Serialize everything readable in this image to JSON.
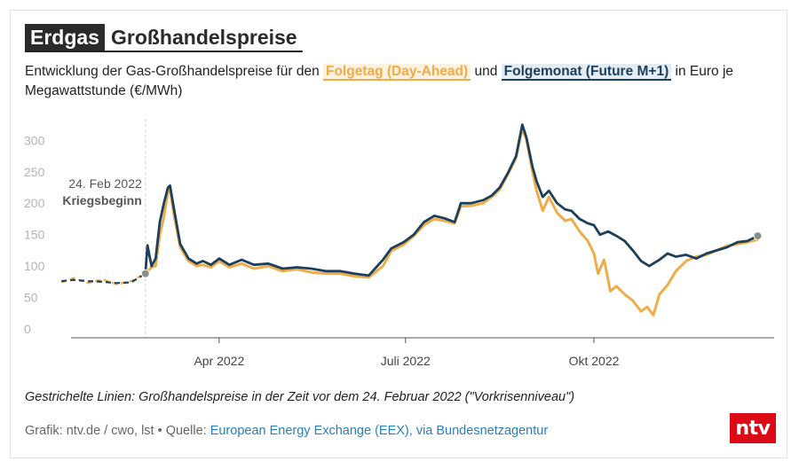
{
  "header": {
    "title_main": "Erdgas",
    "title_sub": "Großhandelspreise"
  },
  "subtitle": {
    "part1": "Entwicklung der Gas-Großhandelspreise für den ",
    "series1_label": "Folgetag (Day-Ahead)",
    "part2": " und ",
    "series2_label": "Folgemonat (Future M+1)",
    "part3": " in Euro je Megawattstunde (€/MWh)"
  },
  "annotation": {
    "date": "24. Feb 2022",
    "label": "Kriegsbeginn"
  },
  "footer": {
    "note": "Gestrichelte Linien: Großhandelspreise in der Zeit vor dem 24. Februar 2022 (\"Vorkrisenniveau\")",
    "source_prefix": "Grafik: ntv.de / cwo, lst • Quelle: ",
    "source_link": "European Energy Exchange (EEX), via Bundesnetzagentur",
    "logo_text": "ntv"
  },
  "colors": {
    "day_ahead": "#efad4a",
    "future": "#1c3f5c",
    "axis": "#555555",
    "tick_label": "#b3b3b3",
    "logo": "#dc0a17"
  },
  "chart_data": {
    "type": "line",
    "title": "Großhandelspreise",
    "xlabel": "",
    "ylabel": "",
    "ylim": [
      0,
      340
    ],
    "x_start": "2022-01-10",
    "x_end": "2022-12-28",
    "xticks": [
      {
        "label": "Apr 2022",
        "date": "2022-04-01"
      },
      {
        "label": "Juli 2022",
        "date": "2022-07-01"
      },
      {
        "label": "Okt 2022",
        "date": "2022-10-01"
      }
    ],
    "yticks": [
      0,
      50,
      100,
      150,
      200,
      250,
      300
    ],
    "event": {
      "date": "2022-02-24",
      "value": 88
    },
    "end_point": {
      "date": "2022-12-20",
      "value": 148
    },
    "series": [
      {
        "name": "Folgetag (Day-Ahead)",
        "color": "#efad4a",
        "pre_crisis": [
          [
            "2022-01-14",
            74
          ],
          [
            "2022-01-20",
            81
          ],
          [
            "2022-01-27",
            73
          ],
          [
            "2022-02-03",
            79
          ],
          [
            "2022-02-10",
            71
          ],
          [
            "2022-02-17",
            76
          ],
          [
            "2022-02-24",
            88
          ]
        ],
        "data": [
          [
            "2022-02-24",
            88
          ],
          [
            "2022-02-27",
            98
          ],
          [
            "2022-03-01",
            100
          ],
          [
            "2022-03-03",
            150
          ],
          [
            "2022-03-05",
            178
          ],
          [
            "2022-03-07",
            218
          ],
          [
            "2022-03-08",
            222
          ],
          [
            "2022-03-10",
            180
          ],
          [
            "2022-03-13",
            130
          ],
          [
            "2022-03-17",
            108
          ],
          [
            "2022-03-21",
            100
          ],
          [
            "2022-03-24",
            102
          ],
          [
            "2022-03-28",
            98
          ],
          [
            "2022-04-01",
            108
          ],
          [
            "2022-04-06",
            98
          ],
          [
            "2022-04-12",
            104
          ],
          [
            "2022-04-18",
            96
          ],
          [
            "2022-04-25",
            100
          ],
          [
            "2022-05-02",
            92
          ],
          [
            "2022-05-09",
            95
          ],
          [
            "2022-05-16",
            90
          ],
          [
            "2022-05-23",
            88
          ],
          [
            "2022-05-30",
            88
          ],
          [
            "2022-06-06",
            84
          ],
          [
            "2022-06-13",
            82
          ],
          [
            "2022-06-20",
            100
          ],
          [
            "2022-06-24",
            124
          ],
          [
            "2022-06-30",
            134
          ],
          [
            "2022-07-05",
            148
          ],
          [
            "2022-07-10",
            165
          ],
          [
            "2022-07-15",
            175
          ],
          [
            "2022-07-20",
            172
          ],
          [
            "2022-07-25",
            168
          ],
          [
            "2022-07-28",
            195
          ],
          [
            "2022-08-02",
            196
          ],
          [
            "2022-08-08",
            200
          ],
          [
            "2022-08-12",
            210
          ],
          [
            "2022-08-16",
            222
          ],
          [
            "2022-08-20",
            246
          ],
          [
            "2022-08-24",
            272
          ],
          [
            "2022-08-27",
            318
          ],
          [
            "2022-08-29",
            302
          ],
          [
            "2022-09-01",
            250
          ],
          [
            "2022-09-03",
            220
          ],
          [
            "2022-09-06",
            188
          ],
          [
            "2022-09-09",
            210
          ],
          [
            "2022-09-13",
            185
          ],
          [
            "2022-09-17",
            172
          ],
          [
            "2022-09-20",
            175
          ],
          [
            "2022-09-24",
            155
          ],
          [
            "2022-09-28",
            140
          ],
          [
            "2022-10-01",
            120
          ],
          [
            "2022-10-03",
            88
          ],
          [
            "2022-10-06",
            110
          ],
          [
            "2022-10-09",
            60
          ],
          [
            "2022-10-12",
            68
          ],
          [
            "2022-10-16",
            55
          ],
          [
            "2022-10-20",
            45
          ],
          [
            "2022-10-24",
            28
          ],
          [
            "2022-10-27",
            35
          ],
          [
            "2022-10-30",
            22
          ],
          [
            "2022-11-02",
            55
          ],
          [
            "2022-11-06",
            70
          ],
          [
            "2022-11-10",
            92
          ],
          [
            "2022-11-15",
            108
          ],
          [
            "2022-11-20",
            115
          ],
          [
            "2022-11-25",
            118
          ],
          [
            "2022-11-30",
            125
          ],
          [
            "2022-12-05",
            132
          ],
          [
            "2022-12-10",
            135
          ],
          [
            "2022-12-15",
            138
          ],
          [
            "2022-12-20",
            142
          ]
        ]
      },
      {
        "name": "Folgemonat (Future M+1)",
        "color": "#1c3f5c",
        "pre_crisis": [
          [
            "2022-01-14",
            76
          ],
          [
            "2022-01-20",
            78
          ],
          [
            "2022-01-27",
            76
          ],
          [
            "2022-02-03",
            75
          ],
          [
            "2022-02-10",
            73
          ],
          [
            "2022-02-17",
            74
          ],
          [
            "2022-02-24",
            88
          ]
        ],
        "data": [
          [
            "2022-02-24",
            88
          ],
          [
            "2022-02-25",
            133
          ],
          [
            "2022-02-27",
            100
          ],
          [
            "2022-03-01",
            112
          ],
          [
            "2022-03-03",
            170
          ],
          [
            "2022-03-05",
            200
          ],
          [
            "2022-03-07",
            225
          ],
          [
            "2022-03-08",
            228
          ],
          [
            "2022-03-10",
            190
          ],
          [
            "2022-03-13",
            135
          ],
          [
            "2022-03-17",
            112
          ],
          [
            "2022-03-21",
            104
          ],
          [
            "2022-03-24",
            108
          ],
          [
            "2022-03-28",
            102
          ],
          [
            "2022-04-01",
            112
          ],
          [
            "2022-04-06",
            102
          ],
          [
            "2022-04-12",
            110
          ],
          [
            "2022-04-18",
            102
          ],
          [
            "2022-04-25",
            104
          ],
          [
            "2022-05-02",
            96
          ],
          [
            "2022-05-09",
            98
          ],
          [
            "2022-05-16",
            96
          ],
          [
            "2022-05-23",
            92
          ],
          [
            "2022-05-30",
            92
          ],
          [
            "2022-06-06",
            88
          ],
          [
            "2022-06-13",
            85
          ],
          [
            "2022-06-20",
            110
          ],
          [
            "2022-06-24",
            128
          ],
          [
            "2022-06-30",
            138
          ],
          [
            "2022-07-05",
            150
          ],
          [
            "2022-07-10",
            170
          ],
          [
            "2022-07-15",
            180
          ],
          [
            "2022-07-20",
            176
          ],
          [
            "2022-07-25",
            170
          ],
          [
            "2022-07-28",
            200
          ],
          [
            "2022-08-02",
            200
          ],
          [
            "2022-08-08",
            205
          ],
          [
            "2022-08-12",
            212
          ],
          [
            "2022-08-16",
            225
          ],
          [
            "2022-08-20",
            248
          ],
          [
            "2022-08-24",
            275
          ],
          [
            "2022-08-27",
            325
          ],
          [
            "2022-08-29",
            305
          ],
          [
            "2022-09-01",
            258
          ],
          [
            "2022-09-03",
            235
          ],
          [
            "2022-09-06",
            210
          ],
          [
            "2022-09-09",
            220
          ],
          [
            "2022-09-13",
            200
          ],
          [
            "2022-09-17",
            190
          ],
          [
            "2022-09-20",
            188
          ],
          [
            "2022-09-24",
            175
          ],
          [
            "2022-09-28",
            168
          ],
          [
            "2022-10-01",
            165
          ],
          [
            "2022-10-04",
            150
          ],
          [
            "2022-10-08",
            155
          ],
          [
            "2022-10-12",
            148
          ],
          [
            "2022-10-16",
            140
          ],
          [
            "2022-10-20",
            125
          ],
          [
            "2022-10-24",
            108
          ],
          [
            "2022-10-28",
            100
          ],
          [
            "2022-11-02",
            110
          ],
          [
            "2022-11-06",
            120
          ],
          [
            "2022-11-10",
            115
          ],
          [
            "2022-11-15",
            118
          ],
          [
            "2022-11-20",
            112
          ],
          [
            "2022-11-25",
            120
          ],
          [
            "2022-11-30",
            125
          ],
          [
            "2022-12-05",
            130
          ],
          [
            "2022-12-10",
            138
          ],
          [
            "2022-12-15",
            140
          ],
          [
            "2022-12-20",
            148
          ]
        ]
      }
    ]
  }
}
